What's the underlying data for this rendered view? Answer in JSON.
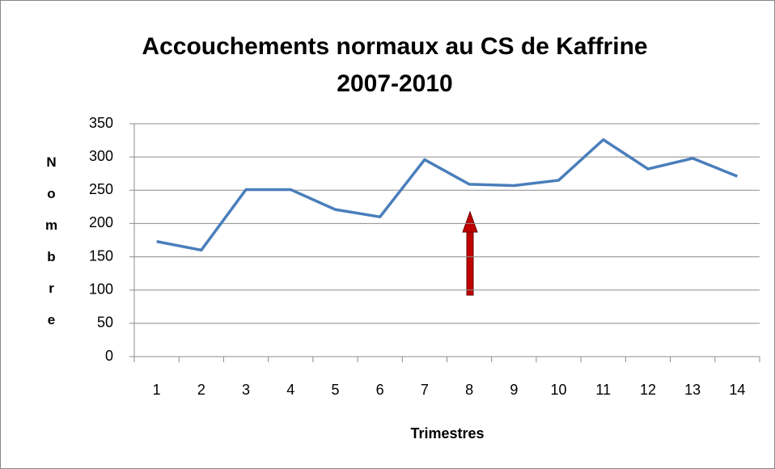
{
  "chart_data": {
    "type": "line",
    "title": "Accouchements normaux au CS de Kaffrine 2007-2010",
    "x_label": "Trimestres",
    "y_label": "Nombre",
    "categories": [
      "1",
      "2",
      "3",
      "4",
      "5",
      "6",
      "7",
      "8",
      "9",
      "10",
      "11",
      "12",
      "13",
      "14"
    ],
    "series": [
      {
        "color": "#4a7ebb",
        "values": [
          173,
          160,
          251,
          251,
          221,
          210,
          296,
          259,
          257,
          265,
          326,
          282,
          298,
          271
        ]
      }
    ],
    "ylim": [
      0,
      350
    ],
    "yticks": [
      0,
      50,
      100,
      150,
      200,
      250,
      300,
      350
    ],
    "grid": true
  }
}
